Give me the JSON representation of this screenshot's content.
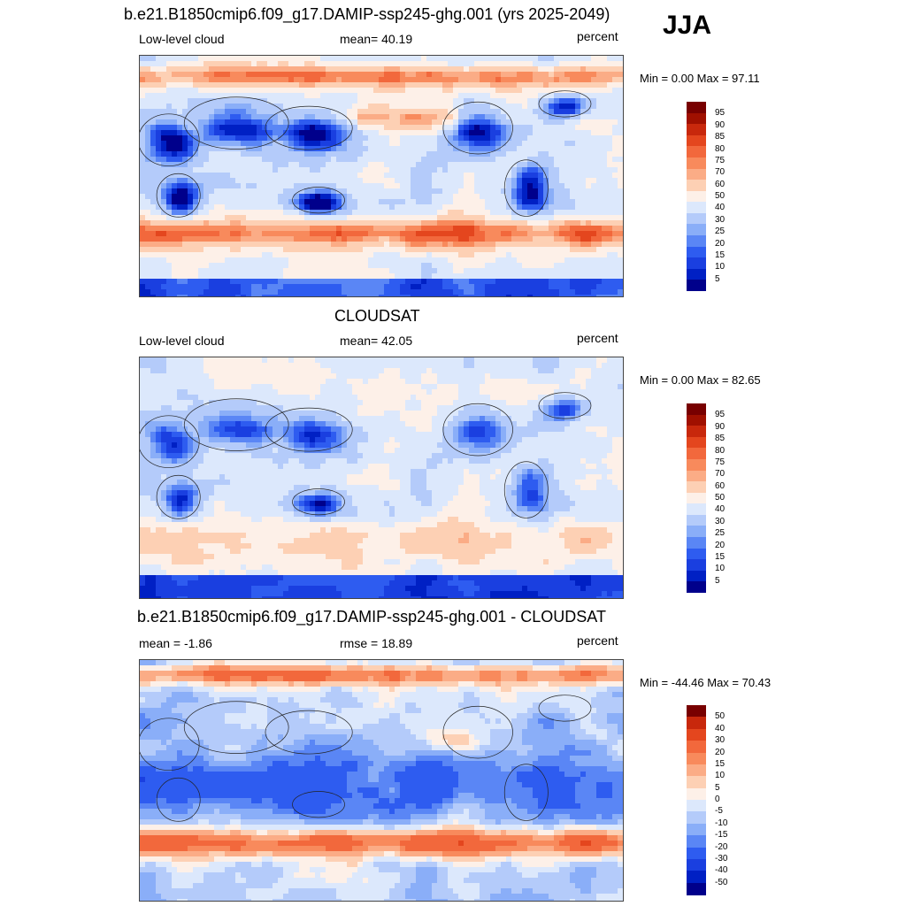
{
  "season": "JJA",
  "colors": {
    "scale_abs": [
      "#00008b",
      "#0020c4",
      "#1a3fe0",
      "#2e5cf0",
      "#5a86f5",
      "#8aaef8",
      "#b4cbfa",
      "#dce8fc",
      "#fdf0e8",
      "#fdd0b4",
      "#fbac86",
      "#f88a5c",
      "#f2683c",
      "#e4461e",
      "#c8280c",
      "#a01000",
      "#780000"
    ],
    "scale_diff": [
      "#00008b",
      "#0020c4",
      "#1a3fe0",
      "#2e5cf0",
      "#5a86f5",
      "#8aaef8",
      "#b4cbfa",
      "#dce8fc",
      "#fdf0e8",
      "#fdd0b4",
      "#fbac86",
      "#f88a5c",
      "#f2683c",
      "#e4461e",
      "#c8280c",
      "#780000"
    ]
  },
  "panels": [
    {
      "title": "b.e21.B1850cmip6.f09_g17.DAMIP-ssp245-ghg.001 (yrs 2025-2049)",
      "left_label": "Low-level cloud",
      "center_label": "mean=  40.19",
      "units": "percent",
      "minmax": "Min =   0.00 Max =  97.11",
      "colorbar_labels": [
        "95",
        "90",
        "85",
        "80",
        "75",
        "70",
        "60",
        "50",
        "40",
        "30",
        "25",
        "20",
        "15",
        "10",
        "5"
      ],
      "map_fill": "model"
    },
    {
      "title": "CLOUDSAT",
      "left_label": "Low-level cloud",
      "center_label": "mean=  42.05",
      "units": "percent",
      "minmax": "Min =   0.00 Max =  82.65",
      "colorbar_labels": [
        "95",
        "90",
        "85",
        "80",
        "75",
        "70",
        "60",
        "50",
        "40",
        "30",
        "25",
        "20",
        "15",
        "10",
        "5"
      ],
      "map_fill": "obs"
    },
    {
      "title": "b.e21.B1850cmip6.f09_g17.DAMIP-ssp245-ghg.001 - CLOUDSAT",
      "left_label": "mean =  -1.86",
      "center_label": "rmse =  18.89",
      "units": "percent",
      "minmax": "Min = -44.46 Max =  70.43",
      "colorbar_labels": [
        "50",
        "40",
        "30",
        "20",
        "15",
        "10",
        "5",
        "0",
        "-5",
        "-10",
        "-15",
        "-20",
        "-30",
        "-40",
        "-50"
      ],
      "map_fill": "diff"
    }
  ]
}
